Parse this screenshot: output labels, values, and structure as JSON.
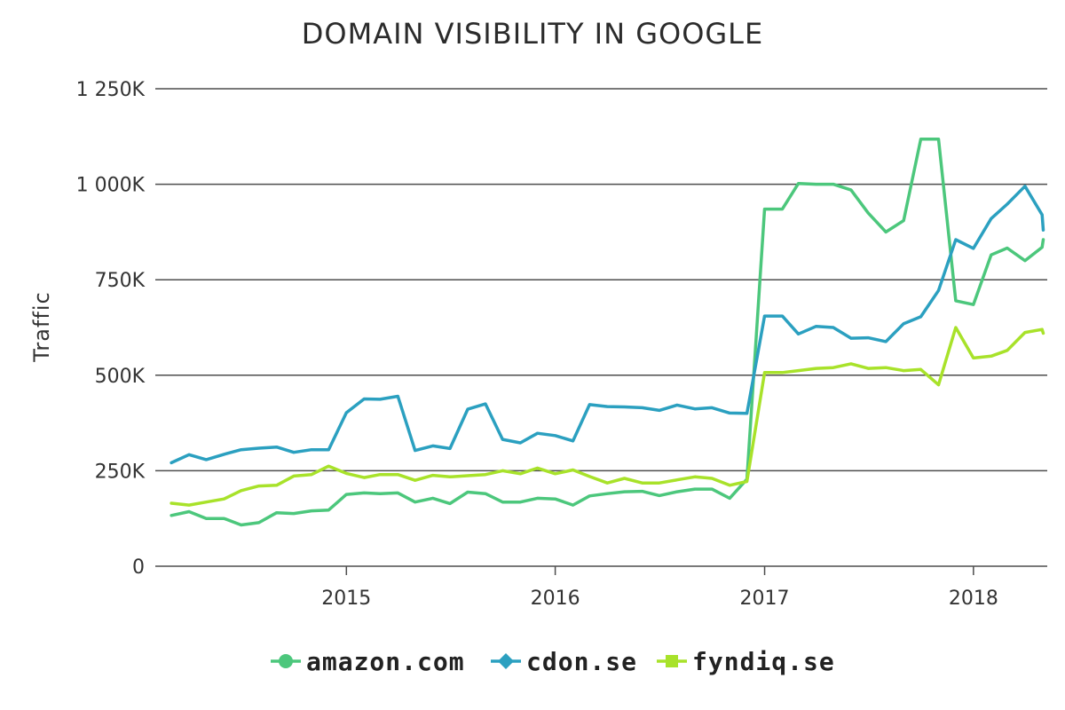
{
  "chart_data": {
    "type": "line",
    "title": "DOMAIN VISIBILITY IN GOOGLE",
    "xlabel": "",
    "ylabel": "Traffic",
    "ylim": [
      0,
      1250
    ],
    "yticks": [
      {
        "value": 0,
        "label": "0"
      },
      {
        "value": 250,
        "label": "250K"
      },
      {
        "value": 500,
        "label": "500K"
      },
      {
        "value": 750,
        "label": "750K"
      },
      {
        "value": 1000,
        "label": "1 000K"
      },
      {
        "value": 1250,
        "label": "1 250K"
      }
    ],
    "xlim": [
      "2014-02-01",
      "2018-05-10"
    ],
    "xticks": [
      {
        "value": "2015-01-01",
        "label": "2015"
      },
      {
        "value": "2016-01-01",
        "label": "2016"
      },
      {
        "value": "2017-01-01",
        "label": "2017"
      },
      {
        "value": "2018-01-01",
        "label": "2018"
      }
    ],
    "grid": true,
    "legend_position": "bottom",
    "x": [
      "2014-03-01",
      "2014-04-01",
      "2014-05-01",
      "2014-06-01",
      "2014-07-01",
      "2014-08-01",
      "2014-09-01",
      "2014-10-01",
      "2014-11-01",
      "2014-12-01",
      "2015-01-01",
      "2015-02-01",
      "2015-03-01",
      "2015-04-01",
      "2015-05-01",
      "2015-06-01",
      "2015-07-01",
      "2015-08-01",
      "2015-09-01",
      "2015-10-01",
      "2015-11-01",
      "2015-12-01",
      "2016-01-01",
      "2016-02-01",
      "2016-03-01",
      "2016-04-01",
      "2016-05-01",
      "2016-06-01",
      "2016-07-01",
      "2016-08-01",
      "2016-09-01",
      "2016-10-01",
      "2016-11-01",
      "2016-12-01",
      "2017-01-01",
      "2017-02-01",
      "2017-03-01",
      "2017-04-01",
      "2017-05-01",
      "2017-06-01",
      "2017-07-01",
      "2017-08-01",
      "2017-09-01",
      "2017-10-01",
      "2017-11-01",
      "2017-12-01",
      "2018-01-01",
      "2018-02-01",
      "2018-03-01",
      "2018-04-01",
      "2018-05-01",
      "2018-05-03"
    ],
    "series": [
      {
        "name": "amazon.com",
        "color": "#4cc77c",
        "marker": "circle",
        "values": [
          133,
          143,
          125,
          125,
          108,
          114,
          140,
          138,
          145,
          147,
          188,
          192,
          190,
          192,
          168,
          178,
          164,
          194,
          190,
          168,
          168,
          178,
          176,
          160,
          184,
          190,
          195,
          196,
          185,
          195,
          202,
          202,
          178,
          228,
          935,
          935,
          1002,
          1000,
          1000,
          985,
          925,
          875,
          905,
          1118,
          1118,
          695,
          685,
          815,
          833,
          800,
          835,
          855
        ]
      },
      {
        "name": "cdon.se",
        "color": "#2ba0c0",
        "marker": "diamond",
        "values": [
          271,
          292,
          279,
          293,
          305,
          309,
          312,
          298,
          305,
          305,
          402,
          438,
          437,
          445,
          303,
          315,
          308,
          411,
          425,
          332,
          323,
          348,
          342,
          328,
          423,
          418,
          417,
          415,
          408,
          422,
          412,
          415,
          401,
          400,
          655,
          655,
          608,
          628,
          625,
          597,
          598,
          588,
          635,
          653,
          722,
          855,
          832,
          910,
          948,
          995,
          920,
          880
        ]
      },
      {
        "name": "fyndiq.se",
        "color": "#a8e22a",
        "marker": "square",
        "values": [
          165,
          160,
          168,
          176,
          198,
          210,
          212,
          236,
          240,
          262,
          243,
          232,
          240,
          240,
          225,
          238,
          234,
          237,
          240,
          250,
          242,
          257,
          242,
          252,
          235,
          218,
          230,
          218,
          218,
          226,
          234,
          230,
          212,
          222,
          507,
          507,
          512,
          518,
          520,
          530,
          518,
          520,
          512,
          515,
          475,
          625,
          545,
          550,
          565,
          612,
          620,
          610
        ]
      }
    ]
  }
}
